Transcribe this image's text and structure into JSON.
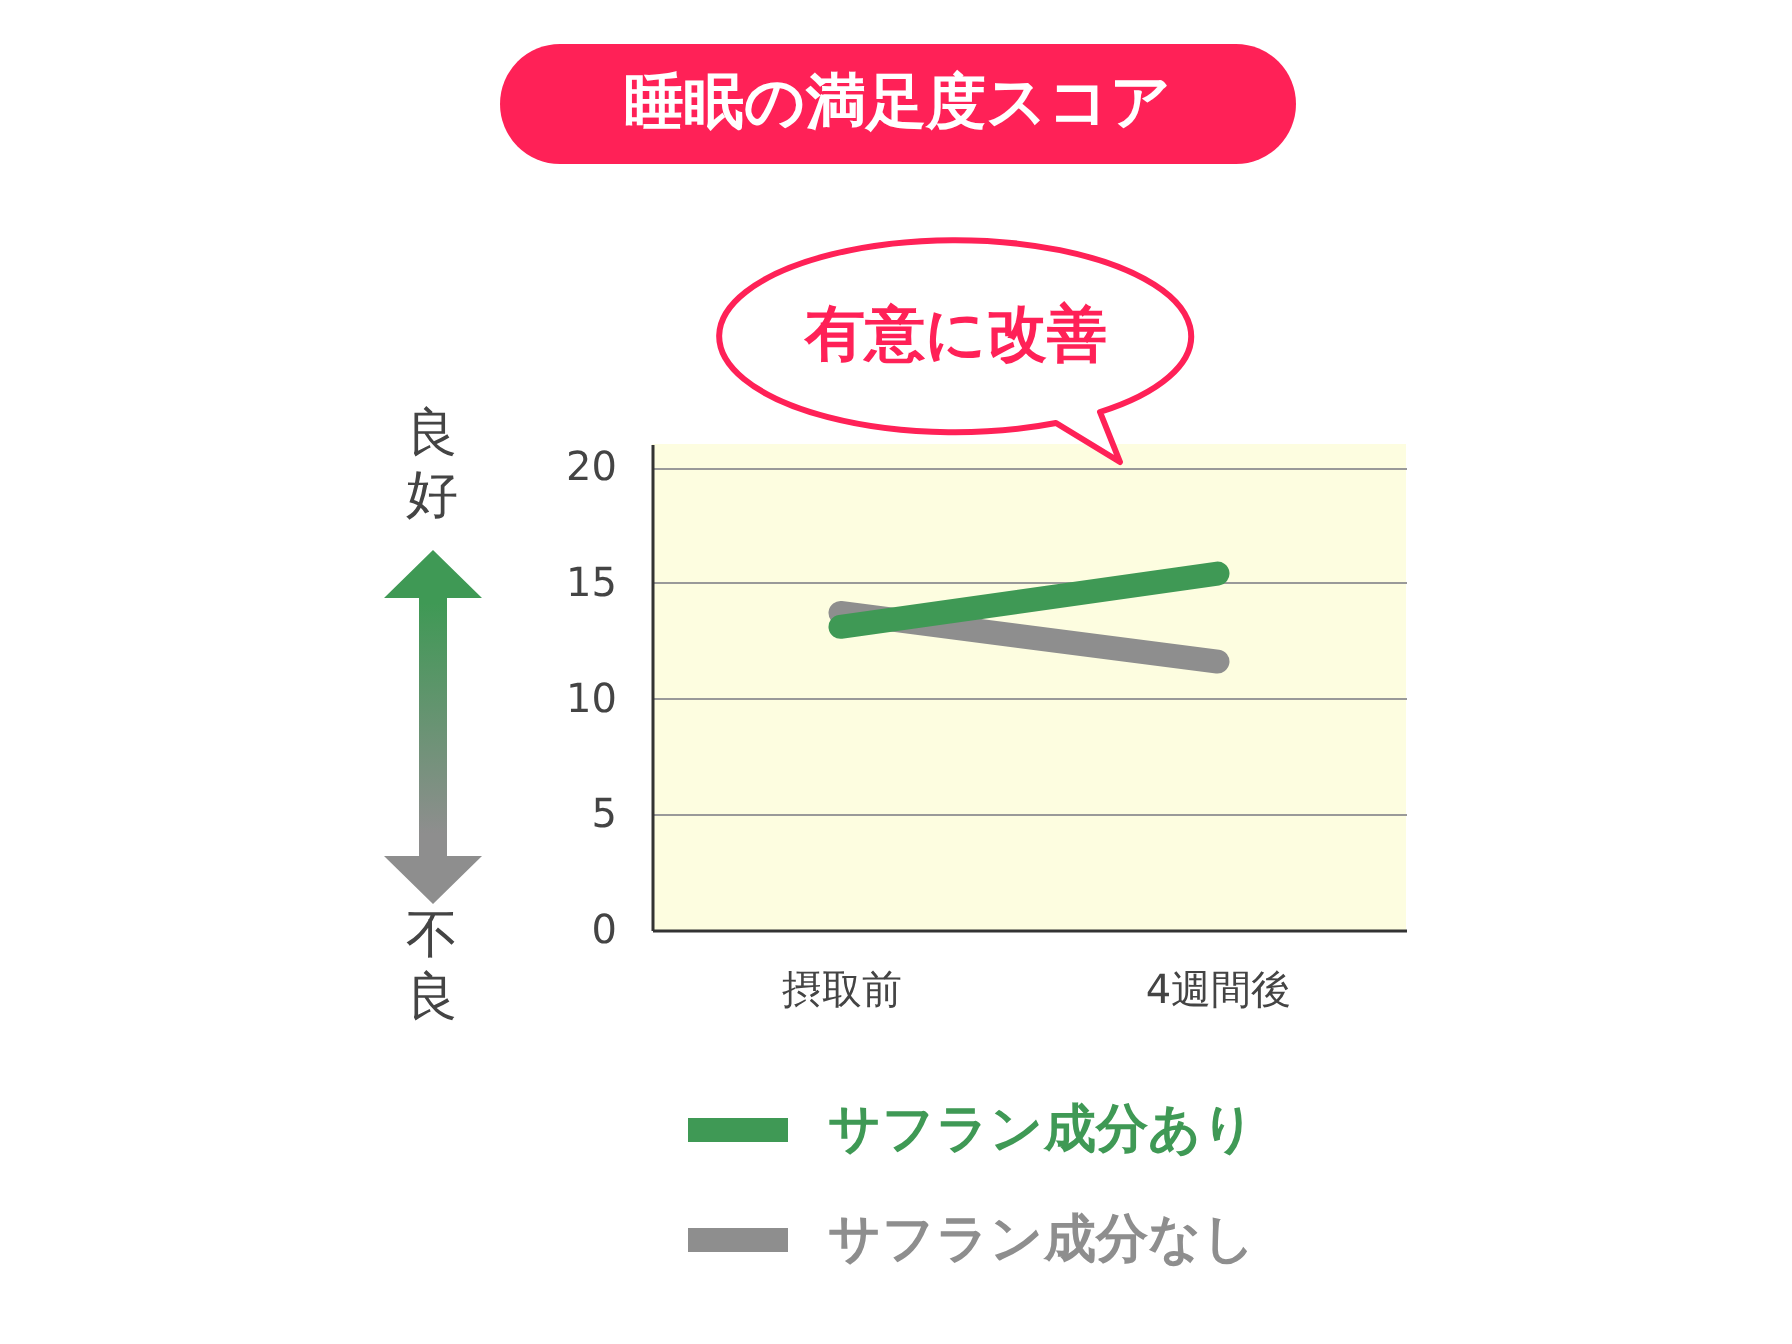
{
  "chart_data": {
    "type": "line",
    "title": "睡眠の満足度スコア",
    "categories": [
      "摂取前",
      "4週間後"
    ],
    "series": [
      {
        "name": "サフラン成分あり",
        "color": "#3f9955",
        "values": [
          13.1,
          15.4
        ]
      },
      {
        "name": "サフラン成分なし",
        "color": "#8e8e8e",
        "values": [
          13.7,
          11.6
        ]
      }
    ],
    "ylim": [
      0,
      21
    ],
    "yticks": [
      0,
      5,
      10,
      15,
      20
    ],
    "grid": "y",
    "legend": "bottom",
    "annotations": [
      "有意に改善",
      "良好",
      "不良"
    ]
  }
}
